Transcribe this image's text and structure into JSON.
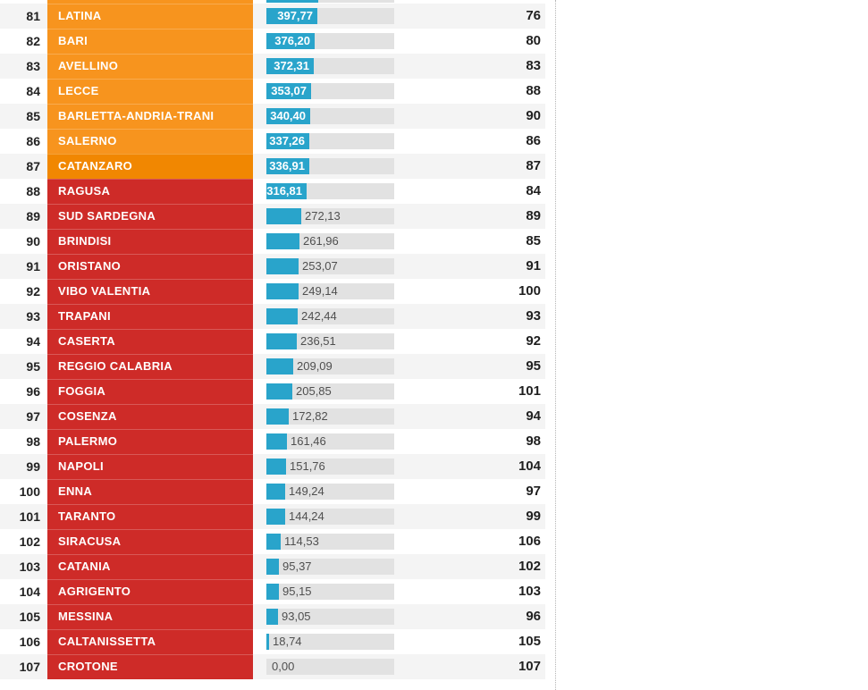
{
  "colors": {
    "orange": "#f7941e",
    "orange_dark": "#f18701",
    "red": "#ce2b28",
    "bar": "#29a4cb",
    "track": "#e2e2e2",
    "stripe": "#f4f4f4",
    "value_outside_text": "#4f4f4f",
    "value_inside_text": "#ffffff",
    "rank_text": "#222222",
    "right_text": "#1f1f1f",
    "divider_dotted": "#b5b5b5"
  },
  "chart_data": {
    "type": "bar",
    "orientation": "horizontal",
    "title": "",
    "xlabel": "",
    "ylabel": "",
    "xlim": [
      0,
      1000
    ],
    "grid": false,
    "legend": false,
    "ranks": [
      81,
      82,
      83,
      84,
      85,
      86,
      87,
      88,
      89,
      90,
      91,
      92,
      93,
      94,
      95,
      96,
      97,
      98,
      99,
      100,
      101,
      102,
      103,
      104,
      105,
      106,
      107
    ],
    "categories": [
      "LATINA",
      "BARI",
      "AVELLINO",
      "LECCE",
      "BARLETTA-ANDRIA-TRANI",
      "SALERNO",
      "CATANZARO",
      "RAGUSA",
      "SUD SARDEGNA",
      "BRINDISI",
      "ORISTANO",
      "VIBO VALENTIA",
      "TRAPANI",
      "CASERTA",
      "REGGIO CALABRIA",
      "FOGGIA",
      "COSENZA",
      "PALERMO",
      "NAPOLI",
      "ENNA",
      "TARANTO",
      "SIRACUSA",
      "CATANIA",
      "AGRIGENTO",
      "MESSINA",
      "CALTANISSETTA",
      "CROTONE"
    ],
    "values": [
      397.77,
      376.2,
      372.31,
      353.07,
      340.4,
      337.26,
      336.91,
      316.81,
      272.13,
      261.96,
      253.07,
      249.14,
      242.44,
      236.51,
      209.09,
      205.85,
      172.82,
      161.46,
      151.76,
      149.24,
      144.24,
      114.53,
      95.37,
      95.15,
      93.05,
      18.74,
      0.0
    ],
    "value_labels": [
      "397,77",
      "376,20",
      "372,31",
      "353,07",
      "340,40",
      "337,26",
      "336,91",
      "316,81",
      "272,13",
      "261,96",
      "253,07",
      "249,14",
      "242,44",
      "236,51",
      "209,09",
      "205,85",
      "172,82",
      "161,46",
      "151,76",
      "149,24",
      "144,24",
      "114,53",
      "95,37",
      "95,15",
      "93,05",
      "18,74",
      "0,00"
    ],
    "right_values": [
      76,
      80,
      83,
      88,
      90,
      86,
      87,
      84,
      89,
      85,
      91,
      100,
      93,
      92,
      95,
      101,
      94,
      98,
      104,
      97,
      99,
      106,
      102,
      103,
      96,
      105,
      107
    ],
    "row_colors": [
      "orange",
      "orange",
      "orange",
      "orange",
      "orange",
      "orange",
      "orange_dark",
      "red",
      "red",
      "red",
      "red",
      "red",
      "red",
      "red",
      "red",
      "red",
      "red",
      "red",
      "red",
      "red",
      "red",
      "red",
      "red",
      "red",
      "red",
      "red",
      "red"
    ],
    "partial_top_row": {
      "visible": true,
      "bar_color": "orange",
      "bar_value_fraction": 0.405
    }
  }
}
